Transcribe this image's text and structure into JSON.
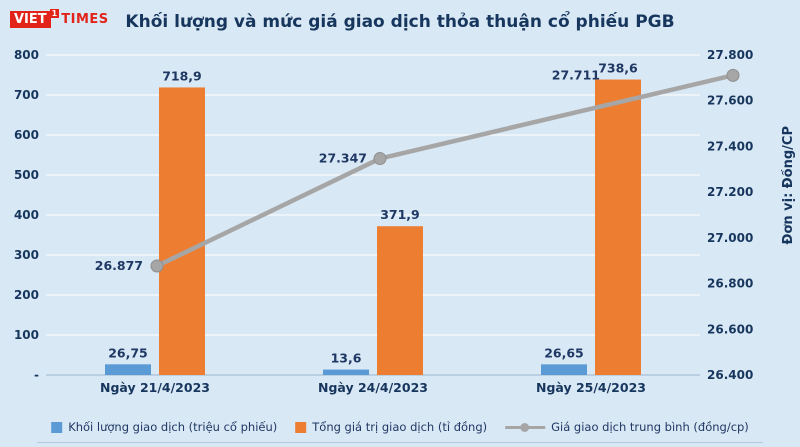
{
  "logo": {
    "viet": "VIET",
    "flag": "1",
    "times": "TIMES"
  },
  "title": "Khối lượng và mức giá giao dịch thỏa thuận cổ phiếu PGB",
  "colors": {
    "background": "#d9e8f5",
    "title_text": "#17365d",
    "axis_text": "#17365d",
    "bar_volume": "#5b9bd5",
    "bar_value": "#ed7d31",
    "price_line": "#a6a6a6",
    "gridline": "#ffffff",
    "logo_red": "#e2231a"
  },
  "chart_data": {
    "type": "bar",
    "subtype": "clustered bars with line on secondary axis",
    "title": "Khối lượng và mức giá giao dịch thỏa thuận cổ phiếu PGB",
    "categories": [
      "Ngày 21/4/2023",
      "Ngày 24/4/2023",
      "Ngày 25/4/2023"
    ],
    "series": [
      {
        "name": "Khối lượng giao dịch (triệu cổ phiếu)",
        "type": "bar",
        "axis": "left",
        "color": "#5b9bd5",
        "values": [
          26.75,
          13.6,
          26.65
        ],
        "value_labels": [
          "26,75",
          "13,6",
          "26,65"
        ]
      },
      {
        "name": "Tổng giá trị giao dịch (tỉ đồng)",
        "type": "bar",
        "axis": "left",
        "color": "#ed7d31",
        "values": [
          718.9,
          371.9,
          738.6
        ],
        "value_labels": [
          "718,9",
          "371,9",
          "738,6"
        ]
      },
      {
        "name": "Giá giao dịch trung bình (đồng/cp)",
        "type": "line",
        "axis": "right",
        "color": "#a6a6a6",
        "values": [
          26877,
          27347,
          27711
        ],
        "value_labels": [
          "26.877",
          "27.347",
          "27.711"
        ]
      }
    ],
    "left_axis": {
      "min": 0,
      "max": 800,
      "step": 100,
      "tick_labels": [
        "-",
        "100",
        "200",
        "300",
        "400",
        "500",
        "600",
        "700",
        "800"
      ]
    },
    "right_axis": {
      "min": 26400,
      "max": 27800,
      "step": 200,
      "tick_labels": [
        "26.400",
        "26.600",
        "26.800",
        "27.000",
        "27.200",
        "27.400",
        "27.600",
        "27.800"
      ],
      "title": "Đơn vị: Đồng/CP"
    },
    "grid": true,
    "legend_position": "bottom"
  }
}
